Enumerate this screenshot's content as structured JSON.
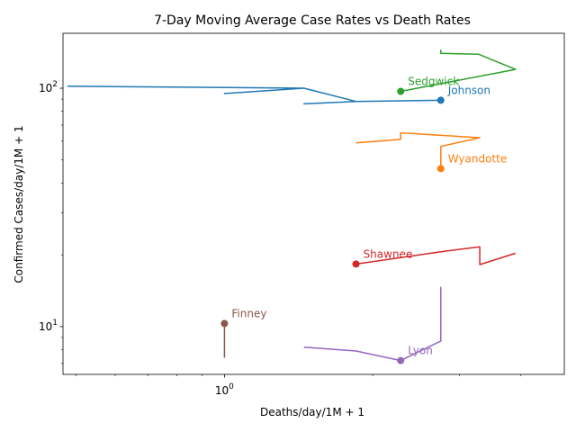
{
  "chart_data": {
    "type": "line",
    "title": "7-Day Moving Average Case Rates vs Death Rates",
    "xlabel": "Deaths/day/1M + 1",
    "ylabel": "Confirmed Cases/day/1M + 1",
    "xscale": "log",
    "yscale": "log",
    "xlim": [
      0.47,
      4.9
    ],
    "ylim": [
      6.3,
      170
    ],
    "x_ticks": [
      {
        "value": 1,
        "label": "10^0"
      }
    ],
    "x_minor_ticks": [
      0.5,
      0.6,
      0.7,
      0.8,
      0.9,
      2,
      3,
      4
    ],
    "y_ticks": [
      {
        "value": 10,
        "label": "10^1"
      },
      {
        "value": 100,
        "label": "10^2"
      }
    ],
    "y_minor_ticks": [
      7,
      8,
      9,
      20,
      30,
      40,
      50,
      60,
      70,
      80,
      90
    ],
    "grid": false,
    "legend": "none",
    "series": [
      {
        "name": "Johnson",
        "color": "#1f77b4",
        "points": [
          [
            0.48,
            102
          ],
          [
            1.45,
            100
          ],
          [
            1.0,
            95
          ],
          [
            1.45,
            100
          ],
          [
            1.85,
            88
          ],
          [
            1.45,
            86
          ],
          [
            1.85,
            88
          ],
          [
            2.75,
            89
          ]
        ],
        "end": [
          2.75,
          89
        ]
      },
      {
        "name": "Wyandotte",
        "color": "#ff7f0e",
        "points": [
          [
            1.85,
            59
          ],
          [
            2.28,
            61
          ],
          [
            2.28,
            65
          ],
          [
            3.3,
            62
          ],
          [
            2.75,
            57
          ],
          [
            2.75,
            46
          ]
        ],
        "end": [
          2.75,
          46
        ]
      },
      {
        "name": "Sedgwick",
        "color": "#2ca02c",
        "points": [
          [
            2.75,
            145
          ],
          [
            2.75,
            140
          ],
          [
            3.28,
            139
          ],
          [
            3.9,
            120
          ],
          [
            2.28,
            97
          ]
        ],
        "end": [
          2.28,
          97
        ]
      },
      {
        "name": "Shawnee",
        "color": "#d62728",
        "points": [
          [
            3.9,
            20.3
          ],
          [
            3.3,
            18.2
          ],
          [
            3.3,
            21.6
          ],
          [
            2.75,
            20.6
          ],
          [
            1.85,
            18.3
          ]
        ],
        "end": [
          1.85,
          18.3
        ]
      },
      {
        "name": "Lyon",
        "color": "#9467bd",
        "points": [
          [
            1.45,
            8.2
          ],
          [
            1.85,
            7.9
          ],
          [
            2.28,
            7.2
          ],
          [
            2.75,
            8.7
          ],
          [
            2.75,
            14.6
          ],
          [
            2.75,
            8.7
          ],
          [
            2.28,
            7.2
          ]
        ],
        "end": [
          2.28,
          7.2
        ]
      },
      {
        "name": "Finney",
        "color": "#8c564b",
        "points": [
          [
            1.0,
            7.4
          ],
          [
            1.0,
            10.3
          ]
        ],
        "end": [
          1.0,
          10.3
        ]
      }
    ]
  }
}
